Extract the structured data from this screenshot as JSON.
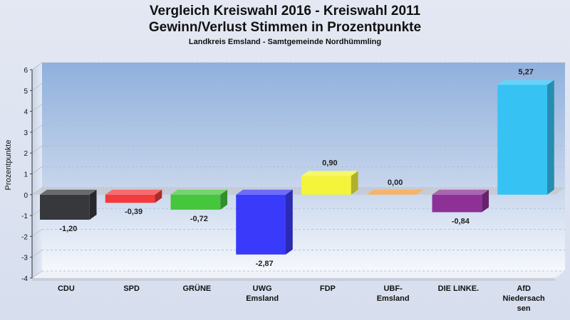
{
  "chart_data": {
    "type": "bar",
    "title": "Vergleich Kreiswahl 2016 - Kreiswahl 2011",
    "title_line2": "Gewinn/Verlust Stimmen in Prozentpunkte",
    "subtitle": "Landkreis Emsland - Samtgemeinde Nordhümmling",
    "xlabel": "",
    "ylabel": "Prozentpunkte",
    "ylim": [
      -4,
      6
    ],
    "yticks": [
      "6",
      "5",
      "4",
      "3",
      "2",
      "1",
      "0",
      "-1",
      "-2",
      "-3",
      "-4"
    ],
    "grid": true,
    "categories": [
      "CDU",
      "SPD",
      "GRÜNE",
      "UWG Emsland",
      "FDP",
      "UBF-Emsland",
      "DIE LINKE.",
      "AfD Niedersachsen"
    ],
    "category_lines": [
      [
        "CDU"
      ],
      [
        "SPD"
      ],
      [
        "GRÜNE"
      ],
      [
        "UWG",
        "Emsland"
      ],
      [
        "FDP"
      ],
      [
        "UBF-",
        "Emsland"
      ],
      [
        "DIE LINKE."
      ],
      [
        "AfD",
        "Niedersach",
        "sen"
      ]
    ],
    "values": [
      -1.2,
      -0.39,
      -0.72,
      -2.87,
      0.9,
      0.0,
      -0.84,
      5.27
    ],
    "value_labels": [
      "-1,20",
      "-0,39",
      "-0,72",
      "-2,87",
      "0,90",
      "0,00",
      "-0,84",
      "5,27"
    ],
    "colors": [
      "#36383c",
      "#f23b3d",
      "#46c63c",
      "#3a3afa",
      "#f4f43a",
      "#f39a38",
      "#8e3196",
      "#36c3f4"
    ]
  }
}
